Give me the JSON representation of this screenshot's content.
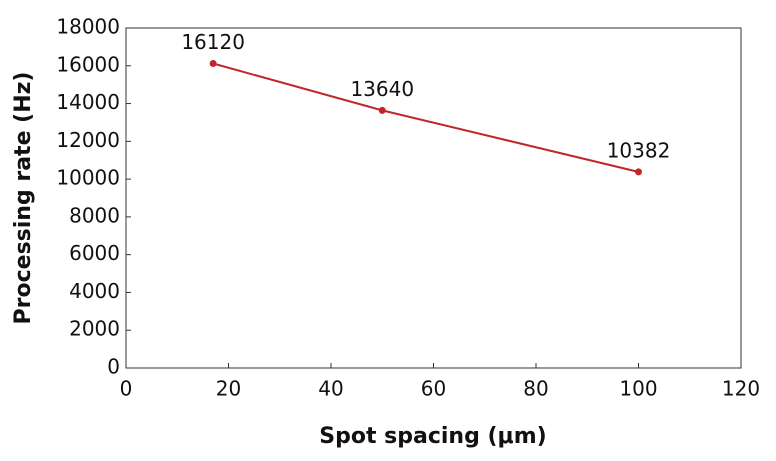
{
  "chart_data": {
    "type": "line",
    "x_label": "Spot spacing (μm)",
    "y_label": "Processing rate (Hz)",
    "x": [
      17,
      50,
      100
    ],
    "values": [
      16120,
      13640,
      10382
    ],
    "color": "#c0272d",
    "xlim": [
      0,
      120
    ],
    "xticks": [
      0,
      20,
      40,
      60,
      80,
      100,
      120
    ],
    "ylim": [
      0,
      18000
    ],
    "yticks": [
      0,
      2000,
      4000,
      6000,
      8000,
      10000,
      12000,
      14000,
      16000,
      18000
    ],
    "grid": false
  }
}
